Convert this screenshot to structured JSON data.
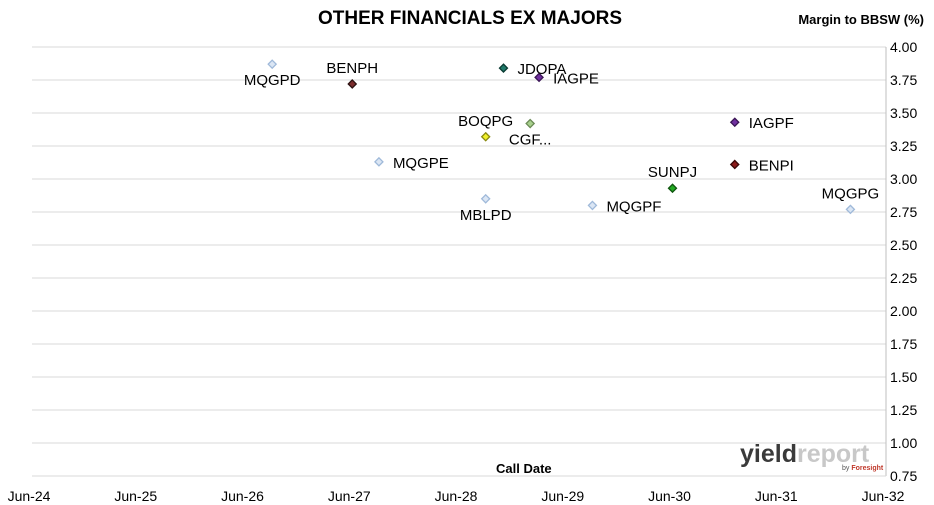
{
  "chart_data": {
    "type": "scatter",
    "title": "OTHER FINANCIALS EX MAJORS",
    "ylabel": "Margin to BBSW (%)",
    "xlabel": "Call Date",
    "x_ticks": [
      "Jun-24",
      "Jun-25",
      "Jun-26",
      "Jun-27",
      "Jun-28",
      "Jun-29",
      "Jun-30",
      "Jun-31",
      "Jun-32"
    ],
    "xlim": [
      "2024-06",
      "2032-06"
    ],
    "y_ticks": [
      "0.75",
      "1.00",
      "1.25",
      "1.50",
      "1.75",
      "2.00",
      "2.25",
      "2.50",
      "2.75",
      "3.00",
      "3.25",
      "3.50",
      "3.75",
      "4.00"
    ],
    "ylim": [
      0.75,
      4.0
    ],
    "y_axis_side": "right",
    "grid": "horizontal",
    "points": [
      {
        "label": "MQGPD",
        "x": "2026-09",
        "y": 3.87,
        "color": "#dbe6f4",
        "edge": "#9fb9d9",
        "label_pos": "below"
      },
      {
        "label": "BENPH",
        "x": "2027-06",
        "y": 3.72,
        "color": "#7b2c2c",
        "edge": "#2a1010",
        "label_pos": "above"
      },
      {
        "label": "MQGPE",
        "x": "2027-09",
        "y": 3.13,
        "color": "#dbe6f4",
        "edge": "#9fb9d9",
        "label_pos": "right"
      },
      {
        "label": "BOQPG",
        "x": "2028-09",
        "y": 3.32,
        "color": "#f0f02a",
        "edge": "#8a8a10",
        "label_pos": "above"
      },
      {
        "label": "MBLPD",
        "x": "2028-09",
        "y": 2.85,
        "color": "#dbe6f4",
        "edge": "#9fb9d9",
        "label_pos": "below"
      },
      {
        "label": "JDOPA",
        "x": "2028-11",
        "y": 3.84,
        "color": "#1f7a6a",
        "edge": "#0a3a32",
        "label_pos": "right"
      },
      {
        "label": "CGF...",
        "x": "2029-02",
        "y": 3.42,
        "color": "#a8d08d",
        "edge": "#6a8a55",
        "label_pos": "below"
      },
      {
        "label": "IAGPE",
        "x": "2029-03",
        "y": 3.77,
        "color": "#7030a0",
        "edge": "#3a1555",
        "label_pos": "right"
      },
      {
        "label": "MQGPF",
        "x": "2029-09",
        "y": 2.8,
        "color": "#dbe6f4",
        "edge": "#9fb9d9",
        "label_pos": "right"
      },
      {
        "label": "SUNPJ",
        "x": "2030-06",
        "y": 2.93,
        "color": "#22aa22",
        "edge": "#0f550f",
        "label_pos": "above"
      },
      {
        "label": "IAGPF",
        "x": "2031-01",
        "y": 3.43,
        "color": "#7030a0",
        "edge": "#3a1555",
        "label_pos": "right"
      },
      {
        "label": "BENPI",
        "x": "2031-01",
        "y": 3.11,
        "color": "#8b1a1a",
        "edge": "#3a0808",
        "label_pos": "right"
      },
      {
        "label": "MQGPG",
        "x": "2032-02",
        "y": 2.77,
        "color": "#dbe6f4",
        "edge": "#9fb9d9",
        "label_pos": "above"
      }
    ]
  },
  "logo": {
    "word_a": "yield",
    "word_b": "report",
    "sub_a": "by",
    "sub_b": "Foresight"
  }
}
